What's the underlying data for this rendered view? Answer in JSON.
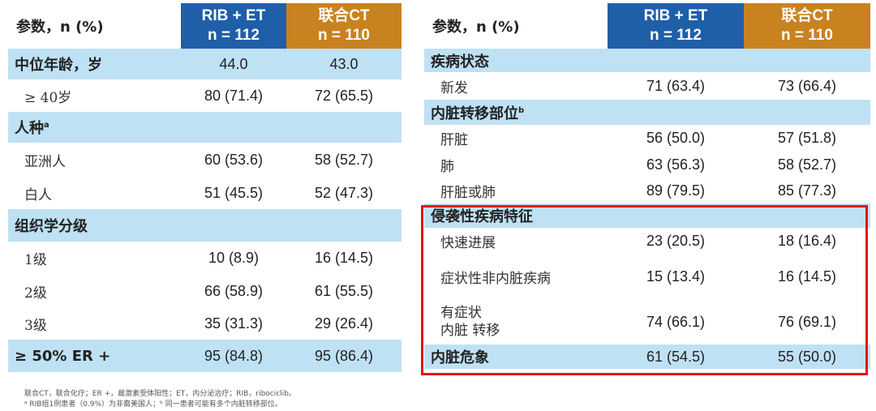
{
  "left_table": {
    "header": {
      "param": "参数，n (%)",
      "rib_line1": "RIB + ET",
      "rib_line2": "n = 112",
      "ct_line1": "联合CT",
      "ct_line2": "n = 110"
    },
    "rows": [
      {
        "kind": "section",
        "label": "中位年龄，岁",
        "rib": "44.0",
        "ct": "43.0"
      },
      {
        "kind": "row",
        "label": "≥ 40岁",
        "rib": "80 (71.4)",
        "ct": "72 (65.5)"
      },
      {
        "kind": "section",
        "label": "人种",
        "sup": "a",
        "rib": "",
        "ct": ""
      },
      {
        "kind": "row",
        "label": "亚洲人",
        "rib": "60 (53.6)",
        "ct": "58 (52.7)"
      },
      {
        "kind": "row",
        "label": "白人",
        "rib": "51 (45.5)",
        "ct": "52 (47.3)"
      },
      {
        "kind": "section",
        "label": "组织学分级",
        "rib": "",
        "ct": ""
      },
      {
        "kind": "row",
        "label": "1级",
        "rib": "10 (8.9)",
        "ct": "16 (14.5)"
      },
      {
        "kind": "row",
        "label": "2级",
        "rib": "66 (58.9)",
        "ct": "61 (55.5)"
      },
      {
        "kind": "row",
        "label": "3级",
        "rib": "35 (31.3)",
        "ct": "29 (26.4)"
      },
      {
        "kind": "section",
        "label": "≥ 50% ER +",
        "rib": "95 (84.8)",
        "ct": "95 (86.4)"
      }
    ]
  },
  "right_table": {
    "header": {
      "param": "参数，n (%)",
      "rib_line1": "RIB + ET",
      "rib_line2": "n = 112",
      "ct_line1": "联合CT",
      "ct_line2": "n = 110"
    },
    "rows": [
      {
        "kind": "section",
        "label": "疾病状态",
        "rib": "",
        "ct": ""
      },
      {
        "kind": "row",
        "label": "新发",
        "rib": "71 (63.4)",
        "ct": "73 (66.4)"
      },
      {
        "kind": "section",
        "label": "内脏转移部位",
        "sup": "b",
        "rib": "",
        "ct": ""
      },
      {
        "kind": "row",
        "label": "肝脏",
        "rib": "56 (50.0)",
        "ct": "57 (51.8)"
      },
      {
        "kind": "row",
        "label": "肺",
        "rib": "63 (56.3)",
        "ct": "58 (52.7)"
      },
      {
        "kind": "row",
        "label": "肝脏或肺",
        "rib": "89 (79.5)",
        "ct": "85 (77.3)"
      },
      {
        "kind": "section",
        "label": "侵袭性疾病特征",
        "rib": "",
        "ct": ""
      },
      {
        "kind": "row",
        "label": "快速进展",
        "rib": "23 (20.5)",
        "ct": "18 (16.4)"
      },
      {
        "kind": "row",
        "label": "症状性非内脏疾病",
        "rib": "15 (13.4)",
        "ct": "16 (14.5)"
      },
      {
        "kind": "row2",
        "label1": "有症状",
        "label2": "内脏 转移",
        "rib": "74 (66.1)",
        "ct": "76 (69.1)"
      },
      {
        "kind": "section",
        "label": "内脏危象",
        "rib": "61 (54.5)",
        "ct": "55 (50.0)"
      }
    ]
  },
  "footnote": {
    "line1": "联合CT，联合化疗；ER +，雌激素受体阳性；ET，内分泌治疗；RIB，ribociclib。",
    "line2": "ᵃ RIB组1例患者（0.9%）为非裔美国人；ᵇ 同一患者可能有多个内脏转移部位。"
  },
  "colors": {
    "rib_header": "#1f5fa8",
    "ct_header": "#c8821f",
    "section_bg": "#bfe1f4",
    "highlight_box": "#e3131b"
  }
}
